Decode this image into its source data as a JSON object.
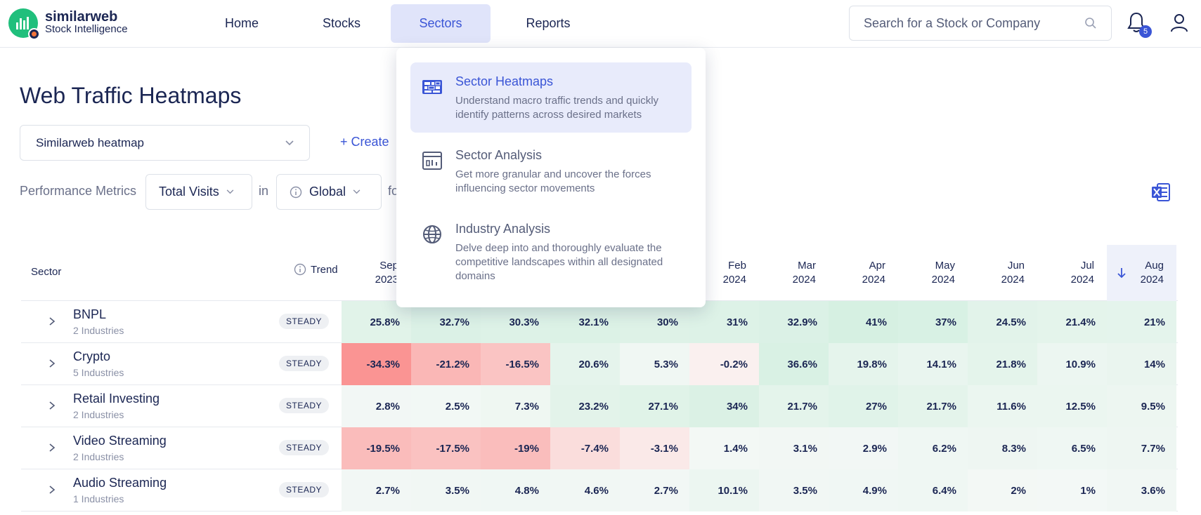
{
  "brand": {
    "name": "similarweb",
    "subtitle": "Stock Intelligence"
  },
  "nav": [
    {
      "label": "Home"
    },
    {
      "label": "Stocks"
    },
    {
      "label": "Sectors"
    },
    {
      "label": "Reports"
    }
  ],
  "search": {
    "placeholder": "Search for a Stock or Company"
  },
  "notifications": {
    "count": "5"
  },
  "page": {
    "title": "Web Traffic Heatmaps",
    "heatmap_select": "Similarweb heatmap",
    "create_label": "Create",
    "metrics_label": "Performance Metrics",
    "metric_value": "Total Visits",
    "in_label": "in",
    "geo_value": "Global",
    "for_label": "fo"
  },
  "menu": {
    "items": [
      {
        "title": "Sector Heatmaps",
        "desc": "Understand macro traffic trends and quickly identify patterns across desired markets"
      },
      {
        "title": "Sector Analysis",
        "desc": "Get more granular and uncover the forces influencing sector movements"
      },
      {
        "title": "Industry Analysis",
        "desc": "Delve deep into and thoroughly evaluate the competitive landscapes within all designated domains"
      }
    ]
  },
  "table": {
    "col_sector": "Sector",
    "col_trend": "Trend",
    "months": [
      {
        "m": "Sep",
        "y": "2023"
      },
      {
        "m": "",
        "y": ""
      },
      {
        "m": "",
        "y": ""
      },
      {
        "m": "",
        "y": ""
      },
      {
        "m": "",
        "y": ""
      },
      {
        "m": "Feb",
        "y": "2024"
      },
      {
        "m": "Mar",
        "y": "2024"
      },
      {
        "m": "Apr",
        "y": "2024"
      },
      {
        "m": "May",
        "y": "2024"
      },
      {
        "m": "Jun",
        "y": "2024"
      },
      {
        "m": "Jul",
        "y": "2024"
      },
      {
        "m": "Aug",
        "y": "2024"
      }
    ],
    "rows": [
      {
        "name": "BNPL",
        "sub": "2 Industries",
        "trend": "STEADY",
        "values": [
          "25.8%",
          "32.7%",
          "30.3%",
          "32.1%",
          "30%",
          "31%",
          "32.9%",
          "41%",
          "37%",
          "24.5%",
          "21.4%",
          "21%"
        ]
      },
      {
        "name": "Crypto",
        "sub": "5 Industries",
        "trend": "STEADY",
        "values": [
          "-34.3%",
          "-21.2%",
          "-16.5%",
          "20.6%",
          "5.3%",
          "-0.2%",
          "36.6%",
          "19.8%",
          "14.1%",
          "21.8%",
          "10.9%",
          "14%"
        ]
      },
      {
        "name": "Retail Investing",
        "sub": "2 Industries",
        "trend": "STEADY",
        "values": [
          "2.8%",
          "2.5%",
          "7.3%",
          "23.2%",
          "27.1%",
          "34%",
          "21.7%",
          "27%",
          "21.7%",
          "11.6%",
          "12.5%",
          "9.5%"
        ]
      },
      {
        "name": "Video Streaming",
        "sub": "2 Industries",
        "trend": "STEADY",
        "values": [
          "-19.5%",
          "-17.5%",
          "-19%",
          "-7.4%",
          "-3.1%",
          "1.4%",
          "3.1%",
          "2.9%",
          "6.2%",
          "8.3%",
          "6.5%",
          "7.7%"
        ]
      },
      {
        "name": "Audio Streaming",
        "sub": "1 Industries",
        "trend": "STEADY",
        "values": [
          "2.7%",
          "3.5%",
          "4.8%",
          "4.6%",
          "2.7%",
          "10.1%",
          "3.5%",
          "4.9%",
          "6.4%",
          "2%",
          "1%",
          "3.6%"
        ]
      }
    ]
  }
}
